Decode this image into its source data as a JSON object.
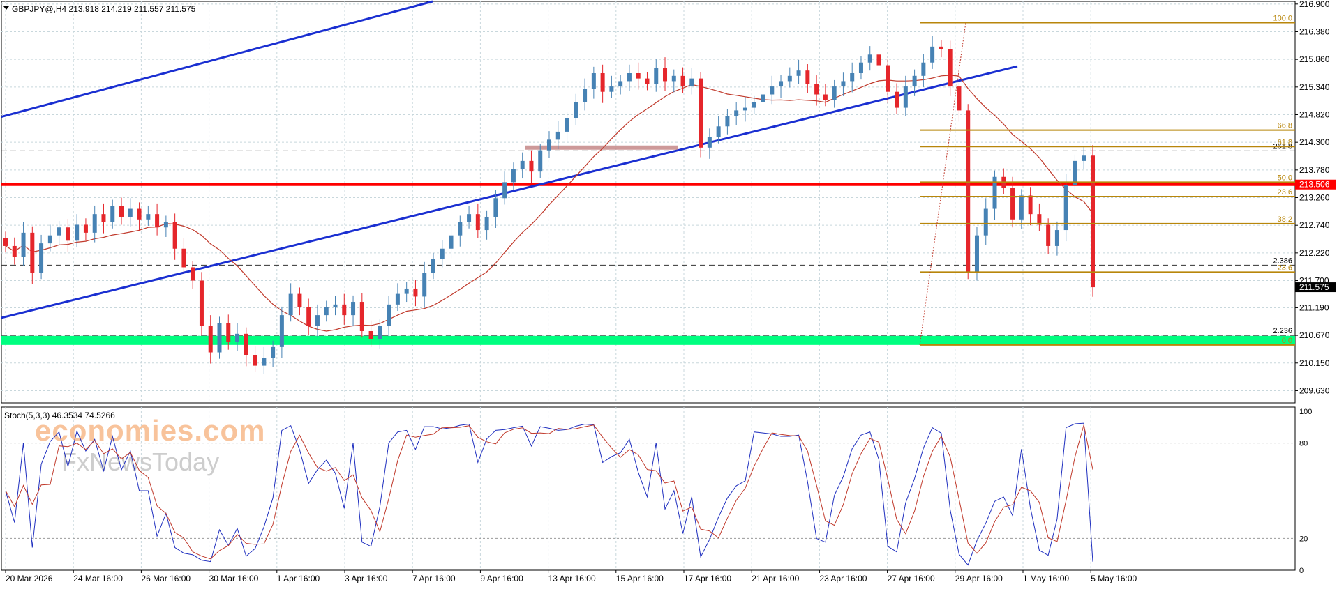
{
  "header": {
    "symbol_line": "GBPJPY@,H4  213.918 214.219 211.557 211.575"
  },
  "watermark": {
    "brand": "economies.com",
    "sub": "FxNewsToday"
  },
  "indicator": {
    "label": "Stoch(5,3,3) 46.3534 74.5266",
    "axis_labels": [
      "100",
      "80",
      "20",
      "0"
    ]
  },
  "chart_data": {
    "type": "candlestick",
    "timeframe": "H4",
    "symbol": "GBPJPY@",
    "ylim": [
      209.4,
      216.95
    ],
    "y_ticks": [
      "216.900",
      "216.380",
      "215.860",
      "215.340",
      "214.820",
      "214.300",
      "213.780",
      "213.260",
      "212.740",
      "212.220",
      "211.700",
      "211.190",
      "210.670",
      "210.150",
      "209.630"
    ],
    "x_ticks": [
      "20 Mar 2026",
      "24 Mar 16:00",
      "26 Mar 16:00",
      "30 Mar 16:00",
      "1 Apr 16:00",
      "3 Apr 16:00",
      "7 Apr 16:00",
      "9 Apr 16:00",
      "13 Apr 16:00",
      "15 Apr 16:00",
      "17 Apr 16:00",
      "21 Apr 16:00",
      "23 Apr 16:00",
      "27 Apr 16:00",
      "29 Apr 16:00",
      "1 May 16:00",
      "5 May 16:00"
    ],
    "last_price": "211.575",
    "current_level": "213.506",
    "horizontal_lines": [
      {
        "kind": "dashed",
        "price": 214.14,
        "label": "261.8"
      },
      {
        "kind": "dashed",
        "price": 211.99,
        "label": "2.386"
      },
      {
        "kind": "dashed",
        "price": 210.67,
        "label": "2.236"
      }
    ],
    "support_zone": {
      "from": 210.49,
      "to": 210.66,
      "color": "#00ff80"
    },
    "resistance_line": {
      "price": 213.506,
      "color": "#ff0000"
    },
    "fibonacci": {
      "color": "#b8860b",
      "levels": [
        {
          "label": "100.0",
          "price": 216.55
        },
        {
          "label": "66.8",
          "price": 214.53
        },
        {
          "label": "61.8",
          "price": 214.22
        },
        {
          "label": "50.0",
          "price": 213.55
        },
        {
          "label": "23.6",
          "price": 213.28
        },
        {
          "label": "38.2",
          "price": 212.77
        },
        {
          "label": "23.6",
          "price": 211.86
        },
        {
          "label": "0.0",
          "price": 210.49
        }
      ]
    },
    "candles_close": [
      212.35,
      212.15,
      212.6,
      211.85,
      212.4,
      212.55,
      212.7,
      212.45,
      212.75,
      212.6,
      212.95,
      212.8,
      213.1,
      212.9,
      213.05,
      212.85,
      212.95,
      212.7,
      212.8,
      212.3,
      211.95,
      211.7,
      210.85,
      210.35,
      210.9,
      210.55,
      210.7,
      210.3,
      210.1,
      210.25,
      210.45,
      211.05,
      211.45,
      211.2,
      210.85,
      211.05,
      211.2,
      211.25,
      211.05,
      211.3,
      210.75,
      210.6,
      210.85,
      211.25,
      211.45,
      211.55,
      211.4,
      211.85,
      212.1,
      212.3,
      212.55,
      212.8,
      212.95,
      212.65,
      212.9,
      213.25,
      213.55,
      213.8,
      213.95,
      213.75,
      214.15,
      214.35,
      214.5,
      214.75,
      215.05,
      215.3,
      215.6,
      215.25,
      215.35,
      215.45,
      215.6,
      215.5,
      215.4,
      215.7,
      215.45,
      215.55,
      215.35,
      215.5,
      214.2,
      214.4,
      214.6,
      214.8,
      214.9,
      214.95,
      215.05,
      215.2,
      215.35,
      215.45,
      215.55,
      215.65,
      215.4,
      215.2,
      215.1,
      215.35,
      215.45,
      215.6,
      215.8,
      215.95,
      215.75,
      215.25,
      214.95,
      215.35,
      215.55,
      215.8,
      216.1,
      216.05,
      215.35,
      214.9,
      211.85,
      212.55,
      213.05,
      213.65,
      213.45,
      212.85,
      213.3,
      212.95,
      212.75,
      212.35,
      212.65,
      213.5,
      213.95,
      214.05,
      211.575
    ],
    "series": [
      {
        "name": "moving-average",
        "color": "#c0392b"
      },
      {
        "name": "stoch-main",
        "color": "#1f2fbf"
      },
      {
        "name": "stoch-signal",
        "color": "#c0392b"
      }
    ]
  }
}
